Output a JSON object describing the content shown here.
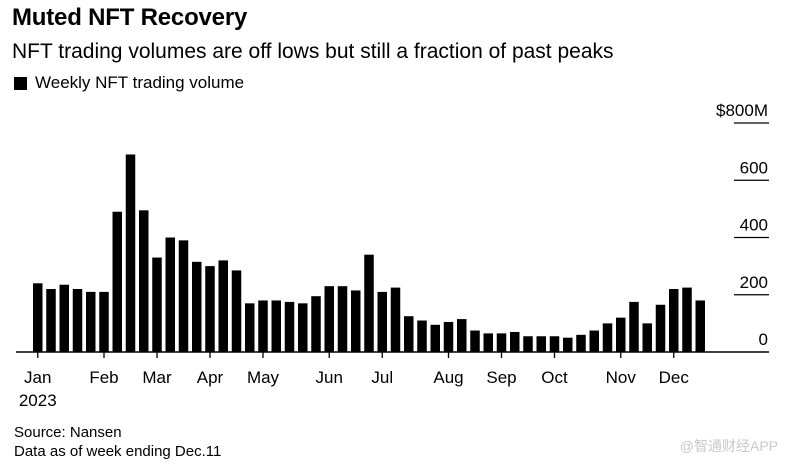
{
  "chart_data": {
    "type": "bar",
    "title": "Muted NFT Recovery",
    "subtitle": "NFT trading volumes are off lows but still a fraction of past peaks",
    "legend": [
      "Weekly NFT trading volume"
    ],
    "ylabel": "",
    "xlabel": "",
    "ylim": [
      0,
      800
    ],
    "yticks": [
      0,
      200,
      400,
      600,
      800
    ],
    "ytick_labels": [
      "0",
      "200",
      "400",
      "600",
      "$800M"
    ],
    "series": [
      {
        "name": "Weekly NFT trading volume",
        "values": [
          240,
          220,
          235,
          220,
          210,
          210,
          490,
          690,
          495,
          330,
          400,
          390,
          315,
          300,
          320,
          285,
          170,
          180,
          180,
          175,
          170,
          195,
          230,
          230,
          215,
          340,
          210,
          225,
          125,
          110,
          95,
          105,
          115,
          75,
          65,
          65,
          70,
          55,
          55,
          55,
          50,
          60,
          75,
          100,
          120,
          175,
          100,
          165,
          220,
          225,
          180
        ]
      }
    ],
    "month_labels": [
      "Jan",
      "Feb",
      "Mar",
      "Apr",
      "May",
      "Jun",
      "Jul",
      "Aug",
      "Sep",
      "Oct",
      "Nov",
      "Dec"
    ],
    "month_bar_index": [
      0,
      5,
      9,
      13,
      17,
      22,
      26,
      31,
      35,
      39,
      44,
      48
    ],
    "year_label": "2023"
  },
  "source": "Source: Nansen",
  "note": "Data as of week ending Dec.11",
  "watermark": "@智通财经APP",
  "colors": {
    "bar": "#000000",
    "grid": "#000000",
    "background": "#ffffff"
  }
}
